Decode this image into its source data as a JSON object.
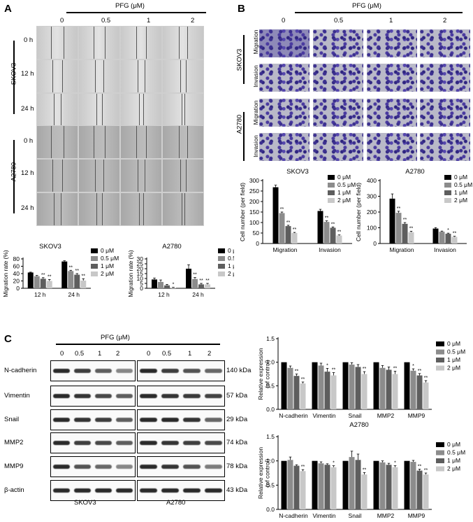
{
  "panelA": {
    "letter": "A",
    "treatment_label": "PFG (μM)",
    "doses": [
      "0",
      "0.5",
      "1",
      "2"
    ],
    "cell_lines": [
      "SKOV3",
      "A2780"
    ],
    "times": [
      "0 h",
      "12 h",
      "24 h"
    ]
  },
  "panelB": {
    "letter": "B",
    "treatment_label": "PFG (μM)",
    "doses": [
      "0",
      "0.5",
      "1",
      "2"
    ],
    "cell_lines": [
      "SKOV3",
      "A2780"
    ],
    "assays": [
      "Migration",
      "Invasion"
    ]
  },
  "panelC": {
    "letter": "C",
    "treatment_label": "PFG (μM)",
    "doses": [
      "0",
      "0.5",
      "1",
      "2"
    ],
    "proteins": [
      "N-cadherin",
      "Vimentin",
      "Snail",
      "MMP2",
      "MMP9",
      "β-actin"
    ],
    "sizes": [
      "140 kDa",
      "57 kDa",
      "29 kDa",
      "74 kDa",
      "78 kDa",
      "43 kDa"
    ],
    "cell_lines": [
      "SKOV3",
      "A2780"
    ]
  },
  "legend": [
    "0 μM",
    "0.5 μM",
    "1 μM",
    "2 μM"
  ],
  "colors": {
    "s0": "#000000",
    "s1": "#8c8c8c",
    "s2": "#5e5e5e",
    "s3": "#c8c8c8"
  },
  "chart_data": [
    {
      "type": "bar",
      "id": "A-SKOV3",
      "title": "SKOV3",
      "ylabel": "Migration rate (%)",
      "ylim": [
        0,
        80
      ],
      "yticks": [
        0,
        20,
        40,
        60,
        80
      ],
      "categories": [
        "12 h",
        "24 h"
      ],
      "series": [
        {
          "name": "0 μM",
          "values": [
            43,
            73
          ],
          "errors": [
            1,
            2
          ],
          "stars": [
            "",
            ""
          ]
        },
        {
          "name": "0.5 μM",
          "values": [
            33,
            47
          ],
          "errors": [
            2,
            2
          ],
          "stars": [
            "",
            "**"
          ]
        },
        {
          "name": "1 μM",
          "values": [
            26,
            37
          ],
          "errors": [
            3,
            3
          ],
          "stars": [
            "**",
            "**"
          ]
        },
        {
          "name": "2 μM",
          "values": [
            20,
            21
          ],
          "errors": [
            4,
            5
          ],
          "stars": [
            "**",
            "**"
          ]
        }
      ]
    },
    {
      "type": "bar",
      "id": "A-A2780",
      "title": "A2780",
      "ylabel": "Migration rate (%)",
      "ylim": [
        0,
        30
      ],
      "yticks": [
        0,
        5,
        10,
        15,
        20,
        25,
        30
      ],
      "categories": [
        "12 h",
        "24 h"
      ],
      "series": [
        {
          "name": "0 μM",
          "values": [
            9,
            20
          ],
          "errors": [
            1.5,
            4
          ],
          "stars": [
            "",
            ""
          ]
        },
        {
          "name": "0.5 μM",
          "values": [
            6.5,
            9.5
          ],
          "errors": [
            2,
            1.5
          ],
          "stars": [
            "",
            "**"
          ]
        },
        {
          "name": "1 μM",
          "values": [
            3,
            4
          ],
          "errors": [
            1,
            1
          ],
          "stars": [
            "",
            "**"
          ]
        },
        {
          "name": "2 μM",
          "values": [
            0.5,
            4
          ],
          "errors": [
            0.5,
            1
          ],
          "stars": [
            "*",
            "**"
          ]
        }
      ]
    },
    {
      "type": "bar",
      "id": "B-SKOV3",
      "title": "SKOV3",
      "ylabel": "Cell number (per field)",
      "ylim": [
        0,
        300
      ],
      "yticks": [
        0,
        50,
        100,
        150,
        200,
        250,
        300
      ],
      "categories": [
        "Migration",
        "Invasion"
      ],
      "series": [
        {
          "name": "0 μM",
          "values": [
            268,
            155
          ],
          "errors": [
            10,
            8
          ],
          "stars": [
            "",
            ""
          ]
        },
        {
          "name": "0.5 μM",
          "values": [
            145,
            103
          ],
          "errors": [
            5,
            5
          ],
          "stars": [
            "**",
            "**"
          ]
        },
        {
          "name": "1 μM",
          "values": [
            83,
            75
          ],
          "errors": [
            4,
            4
          ],
          "stars": [
            "**",
            "**"
          ]
        },
        {
          "name": "2 μM",
          "values": [
            50,
            38
          ],
          "errors": [
            3,
            3
          ],
          "stars": [
            "**",
            "**"
          ]
        }
      ]
    },
    {
      "type": "bar",
      "id": "B-A2780",
      "title": "A2780",
      "ylabel": "Cell number (per field)",
      "ylim": [
        0,
        400
      ],
      "yticks": [
        0,
        100,
        200,
        300,
        400
      ],
      "categories": [
        "Migration",
        "Invasion"
      ],
      "series": [
        {
          "name": "0 μM",
          "values": [
            285,
            95
          ],
          "errors": [
            30,
            6
          ],
          "stars": [
            "",
            ""
          ]
        },
        {
          "name": "0.5 μM",
          "values": [
            195,
            75
          ],
          "errors": [
            10,
            4
          ],
          "stars": [
            "**",
            ""
          ]
        },
        {
          "name": "1 μM",
          "values": [
            125,
            62
          ],
          "errors": [
            8,
            4
          ],
          "stars": [
            "**",
            "*"
          ]
        },
        {
          "name": "2 μM",
          "values": [
            72,
            42
          ],
          "errors": [
            6,
            4
          ],
          "stars": [
            "**",
            "**"
          ]
        }
      ]
    },
    {
      "type": "bar",
      "id": "C-SKOV3",
      "title": "SKOV3",
      "ylabel": "Relative expression (of control)",
      "ylim": [
        0,
        1.5
      ],
      "yticks": [
        0.0,
        0.5,
        1.0,
        1.5
      ],
      "categories": [
        "N-cadherin",
        "Vimentin",
        "Snail",
        "MMP2",
        "MMP9"
      ],
      "series": [
        {
          "name": "0 μM",
          "values": [
            1,
            1,
            1,
            1,
            1
          ],
          "errors": [
            0,
            0,
            0,
            0,
            0
          ],
          "stars": [
            "",
            "",
            "",
            "",
            ""
          ]
        },
        {
          "name": "0.5 μM",
          "values": [
            0.88,
            0.93,
            0.95,
            0.88,
            0.82
          ],
          "errors": [
            0.04,
            0.05,
            0.04,
            0.05,
            0.04
          ],
          "stars": [
            "",
            "",
            "",
            "",
            "*"
          ]
        },
        {
          "name": "1 μM",
          "values": [
            0.71,
            0.8,
            0.9,
            0.84,
            0.72
          ],
          "errors": [
            0.04,
            0.07,
            0.05,
            0.06,
            0.04
          ],
          "stars": [
            "**",
            "*",
            "",
            "",
            "**"
          ]
        },
        {
          "name": "2 μM",
          "values": [
            0.55,
            0.72,
            0.75,
            0.75,
            0.57
          ],
          "errors": [
            0.03,
            0.06,
            0.05,
            0.06,
            0.04
          ],
          "stars": [
            "**",
            "**",
            "**",
            "**",
            "**"
          ]
        }
      ]
    },
    {
      "type": "bar",
      "id": "C-A2780",
      "title": "A2780",
      "ylabel": "Relative expression (of control)",
      "ylim": [
        0,
        1.5
      ],
      "yticks": [
        0.0,
        0.5,
        1.0,
        1.5
      ],
      "categories": [
        "N-cadherin",
        "Vimentin",
        "Snail",
        "MMP2",
        "MMP9"
      ],
      "series": [
        {
          "name": "0 μM",
          "values": [
            1,
            1,
            1,
            1,
            1
          ],
          "errors": [
            0,
            0,
            0,
            0,
            0
          ],
          "stars": [
            "",
            "",
            "",
            "",
            ""
          ]
        },
        {
          "name": "0.5 μM",
          "values": [
            1.02,
            0.95,
            1.08,
            0.97,
            0.98
          ],
          "errors": [
            0.06,
            0.03,
            0.12,
            0.03,
            0.03
          ],
          "stars": [
            "",
            "",
            "",
            "",
            ""
          ]
        },
        {
          "name": "1 μM",
          "values": [
            0.9,
            0.92,
            1.02,
            0.92,
            0.8
          ],
          "errors": [
            0.02,
            0.02,
            0.12,
            0.03,
            0.03
          ],
          "stars": [
            "",
            "",
            "",
            "",
            "**"
          ]
        },
        {
          "name": "2 μM",
          "values": [
            0.79,
            0.87,
            0.72,
            0.87,
            0.72
          ],
          "errors": [
            0.03,
            0.03,
            0.04,
            0.03,
            0.03
          ],
          "stars": [
            "**",
            "*",
            "**",
            "*",
            "**"
          ]
        }
      ]
    }
  ]
}
